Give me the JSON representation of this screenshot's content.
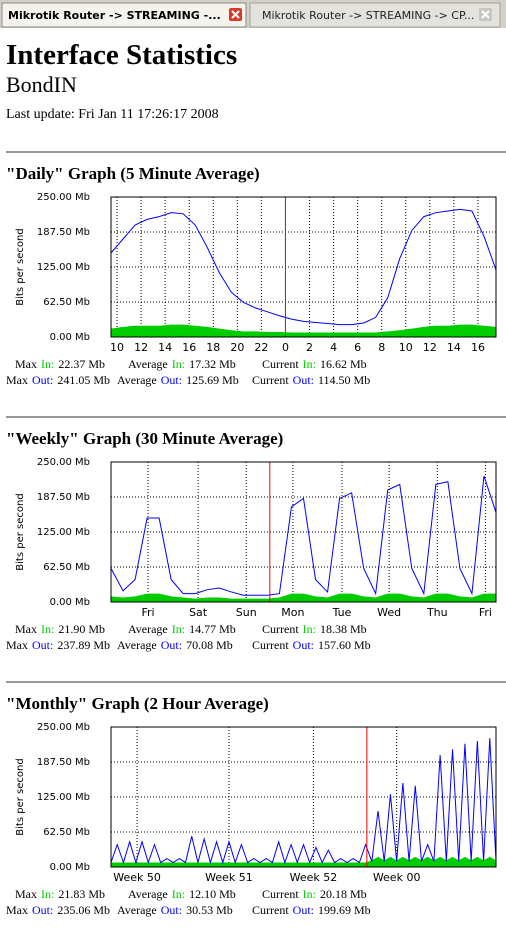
{
  "tabs": [
    "Mikrotik Router -> STREAMING -...",
    "Mikrotik Router -> STREAMING -> CP..."
  ],
  "header": {
    "title": "Interface Statistics",
    "subtitle": "BondIN",
    "last_update": "Last update: Fri Jan 11 17:26:17 2008"
  },
  "chart_data": [
    {
      "type": "line",
      "title": "\"Daily\" Graph (5 Minute Average)",
      "y_label": "Bits per second",
      "ylim": [
        0,
        250
      ],
      "yticks": [
        {
          "value": 0,
          "label": "0.00 Mb"
        },
        {
          "value": 62.5,
          "label": "62.50 Mb"
        },
        {
          "value": 125,
          "label": "125.00 Mb"
        },
        {
          "value": 187.5,
          "label": "187.50 Mb"
        },
        {
          "value": 250,
          "label": "250.00 Mb"
        }
      ],
      "xlim": [
        9.5,
        41.5
      ],
      "xticks": [
        {
          "value": 10,
          "label": "10"
        },
        {
          "value": 12,
          "label": "12"
        },
        {
          "value": 14,
          "label": "14"
        },
        {
          "value": 16,
          "label": "16"
        },
        {
          "value": 18,
          "label": "18"
        },
        {
          "value": 20,
          "label": "20"
        },
        {
          "value": 22,
          "label": "22"
        },
        {
          "value": 24,
          "label": "0"
        },
        {
          "value": 26,
          "label": "2"
        },
        {
          "value": 28,
          "label": "4"
        },
        {
          "value": 30,
          "label": "6"
        },
        {
          "value": 32,
          "label": "8"
        },
        {
          "value": 34,
          "label": "10"
        },
        {
          "value": 36,
          "label": "12"
        },
        {
          "value": 38,
          "label": "14"
        },
        {
          "value": 40,
          "label": "16"
        }
      ],
      "grid": true,
      "marker_x": 24,
      "marker_color": "#ff0000",
      "x": [
        9.5,
        10.5,
        11.5,
        12.5,
        13.5,
        14.5,
        15.5,
        16.5,
        17.5,
        18.5,
        19.5,
        20.5,
        21.5,
        22.5,
        23.5,
        24.5,
        25.5,
        26.5,
        27.5,
        28.5,
        29.5,
        30.5,
        31.5,
        32.5,
        33.5,
        34.5,
        35.5,
        36.5,
        37.5,
        38.5,
        39.5,
        40.5,
        41.5
      ],
      "series": [
        {
          "style": "area",
          "color": "#00cc00",
          "values": [
            15,
            18,
            20,
            20,
            20,
            22,
            22,
            20,
            18,
            15,
            12,
            10,
            10,
            9,
            9,
            8,
            8,
            8,
            8,
            8,
            8,
            8,
            8,
            10,
            12,
            15,
            18,
            20,
            20,
            22,
            22,
            20,
            18
          ]
        },
        {
          "style": "line",
          "color": "#0000ff",
          "values": [
            150,
            175,
            200,
            210,
            215,
            222,
            220,
            200,
            160,
            115,
            80,
            62,
            52,
            45,
            38,
            32,
            28,
            26,
            24,
            22,
            22,
            25,
            35,
            70,
            140,
            190,
            215,
            222,
            225,
            228,
            225,
            180,
            120
          ]
        }
      ],
      "stats": [
        [
          {
            "label": "Max",
            "key": "In:",
            "value": "22.37 Mb"
          },
          {
            "label": "Average",
            "key": "In:",
            "value": "17.32 Mb"
          },
          {
            "label": "Current",
            "key": "In:",
            "value": "16.62 Mb"
          }
        ],
        [
          {
            "label": "Max",
            "key": "Out:",
            "value": "241.05 Mb"
          },
          {
            "label": "Average",
            "key": "Out:",
            "value": "125.69 Mb"
          },
          {
            "label": "Current",
            "key": "Out:",
            "value": "114.50 Mb"
          }
        ]
      ]
    },
    {
      "type": "line",
      "title": "\"Weekly\" Graph (30 Minute Average)",
      "y_label": "Bits per second",
      "ylim": [
        0,
        250
      ],
      "yticks": [
        {
          "value": 0,
          "label": "0.00 Mb"
        },
        {
          "value": 62.5,
          "label": "62.50 Mb"
        },
        {
          "value": 125,
          "label": "125.00 Mb"
        },
        {
          "value": 187.5,
          "label": "187.50 Mb"
        },
        {
          "value": 250,
          "label": "250.00 Mb"
        }
      ],
      "xlim": [
        0,
        8
      ],
      "xticks": [
        {
          "value": 0.77,
          "label": "Fri"
        },
        {
          "value": 1.81,
          "label": "Sat"
        },
        {
          "value": 2.81,
          "label": "Sun"
        },
        {
          "value": 3.78,
          "label": "Mon"
        },
        {
          "value": 4.8,
          "label": "Tue"
        },
        {
          "value": 5.78,
          "label": "Wed"
        },
        {
          "value": 6.78,
          "label": "Thu"
        },
        {
          "value": 7.78,
          "label": "Fri"
        }
      ],
      "grid": true,
      "marker_x": 3.3,
      "marker_color": "#ff0000",
      "x": [
        0,
        0.25,
        0.5,
        0.75,
        1,
        1.25,
        1.5,
        1.75,
        2,
        2.25,
        2.5,
        2.75,
        3,
        3.25,
        3.5,
        3.75,
        4,
        4.25,
        4.5,
        4.75,
        5,
        5.25,
        5.5,
        5.75,
        6,
        6.25,
        6.5,
        6.75,
        7,
        7.25,
        7.5,
        7.75,
        8
      ],
      "series": [
        {
          "style": "area",
          "color": "#00cc00",
          "values": [
            10,
            8,
            10,
            15,
            15,
            10,
            8,
            6,
            8,
            8,
            6,
            6,
            6,
            6,
            8,
            15,
            15,
            10,
            8,
            15,
            15,
            10,
            8,
            15,
            15,
            10,
            8,
            15,
            15,
            10,
            8,
            15,
            15
          ]
        },
        {
          "style": "line",
          "color": "#0000ff",
          "values": [
            60,
            20,
            40,
            150,
            150,
            40,
            15,
            15,
            22,
            25,
            18,
            12,
            12,
            12,
            15,
            170,
            185,
            40,
            18,
            185,
            195,
            60,
            15,
            200,
            210,
            60,
            15,
            210,
            215,
            60,
            15,
            225,
            160
          ]
        }
      ],
      "stats": [
        [
          {
            "label": "Max",
            "key": "In:",
            "value": "21.90 Mb"
          },
          {
            "label": "Average",
            "key": "In:",
            "value": "14.77 Mb"
          },
          {
            "label": "Current",
            "key": "In:",
            "value": "18.38 Mb"
          }
        ],
        [
          {
            "label": "Max",
            "key": "Out:",
            "value": "237.89 Mb"
          },
          {
            "label": "Average",
            "key": "Out:",
            "value": "70.08 Mb"
          },
          {
            "label": "Current",
            "key": "Out:",
            "value": "157.60 Mb"
          }
        ]
      ]
    },
    {
      "type": "line",
      "title": "\"Monthly\" Graph (2 Hour Average)",
      "y_label": "Bits per second",
      "ylim": [
        0,
        250
      ],
      "yticks": [
        {
          "value": 0,
          "label": "0.00 Mb"
        },
        {
          "value": 62.5,
          "label": "62.50 Mb"
        },
        {
          "value": 125,
          "label": "125.00 Mb"
        },
        {
          "value": 187.5,
          "label": "187.50 Mb"
        },
        {
          "value": 250,
          "label": "250.00 Mb"
        }
      ],
      "xlim": [
        0,
        31
      ],
      "xticks": [
        {
          "value": 2.1,
          "label": "Week 50"
        },
        {
          "value": 9.5,
          "label": "Week 51"
        },
        {
          "value": 16.3,
          "label": "Week 52"
        },
        {
          "value": 23,
          "label": "Week 00"
        }
      ],
      "grid": true,
      "marker_x": 20.6,
      "marker_color": "#ff0000",
      "x": [
        0,
        0.5,
        1,
        1.5,
        2,
        2.5,
        3,
        3.5,
        4,
        4.5,
        5,
        5.5,
        6,
        6.5,
        7,
        7.5,
        8,
        8.5,
        9,
        9.5,
        10,
        10.5,
        11,
        11.5,
        12,
        12.5,
        13,
        13.5,
        14,
        14.5,
        15,
        15.5,
        16,
        16.5,
        17,
        17.5,
        18,
        18.5,
        19,
        19.5,
        20,
        20.5,
        21,
        21.5,
        22,
        22.5,
        23,
        23.5,
        24,
        24.5,
        25,
        25.5,
        26,
        26.5,
        27,
        27.5,
        28,
        28.5,
        29,
        29.5,
        30,
        30.5,
        31
      ],
      "series": [
        {
          "style": "area",
          "color": "#00cc00",
          "values": [
            8,
            8,
            8,
            8,
            8,
            8,
            8,
            8,
            8,
            8,
            8,
            8,
            8,
            8,
            8,
            8,
            8,
            8,
            8,
            8,
            8,
            8,
            8,
            8,
            8,
            8,
            8,
            8,
            8,
            8,
            8,
            8,
            8,
            8,
            8,
            8,
            8,
            8,
            8,
            8,
            8,
            8,
            12,
            18,
            12,
            18,
            12,
            18,
            12,
            18,
            12,
            18,
            12,
            18,
            12,
            18,
            12,
            18,
            12,
            18,
            12,
            18,
            12
          ]
        },
        {
          "style": "line",
          "color": "#0000ff",
          "values": [
            8,
            40,
            8,
            45,
            8,
            45,
            8,
            40,
            8,
            15,
            8,
            15,
            8,
            55,
            8,
            50,
            8,
            45,
            8,
            45,
            8,
            40,
            8,
            15,
            8,
            15,
            8,
            45,
            8,
            40,
            8,
            40,
            8,
            35,
            8,
            30,
            8,
            15,
            8,
            15,
            8,
            40,
            10,
            100,
            10,
            130,
            10,
            150,
            10,
            145,
            10,
            40,
            10,
            200,
            10,
            210,
            10,
            220,
            10,
            225,
            10,
            230,
            10
          ]
        }
      ],
      "stats": [
        [
          {
            "label": "Max",
            "key": "In:",
            "value": "21.83 Mb"
          },
          {
            "label": "Average",
            "key": "In:",
            "value": "12.10 Mb"
          },
          {
            "label": "Current",
            "key": "In:",
            "value": "20.18 Mb"
          }
        ],
        [
          {
            "label": "Max",
            "key": "Out:",
            "value": "235.06 Mb"
          },
          {
            "label": "Average",
            "key": "Out:",
            "value": "30.53 Mb"
          },
          {
            "label": "Current",
            "key": "Out:",
            "value": "199.69 Mb"
          }
        ]
      ]
    }
  ]
}
